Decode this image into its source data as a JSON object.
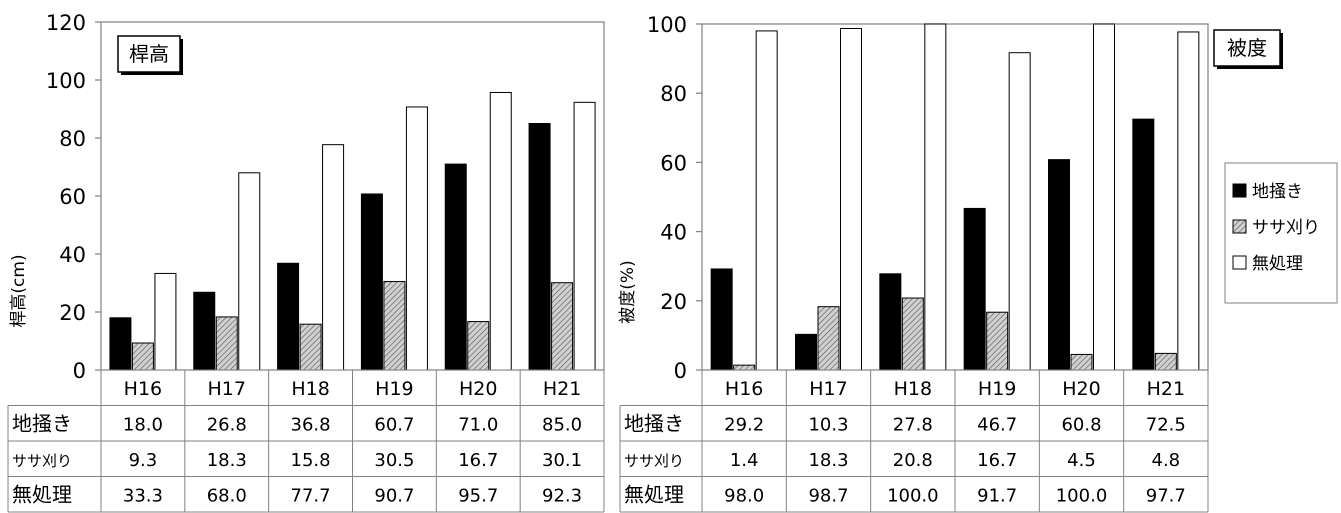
{
  "chart_data": [
    {
      "type": "bar",
      "title": "桿高",
      "ylabel": "桿高(cm)",
      "xlabel": "",
      "ylim": [
        0,
        120
      ],
      "yticks": [
        0,
        20,
        40,
        60,
        80,
        100,
        120
      ],
      "categories": [
        "H16",
        "H17",
        "H18",
        "H19",
        "H20",
        "H21"
      ],
      "series": [
        {
          "name": "地掻き",
          "values": [
            18.0,
            26.8,
            36.8,
            60.7,
            71.0,
            85.0
          ],
          "labels": [
            "18.0",
            "26.8",
            "36.8",
            "60.7",
            "71.0",
            "85.0"
          ]
        },
        {
          "name": "ササ刈り",
          "values": [
            9.3,
            18.3,
            15.8,
            30.5,
            16.7,
            30.1
          ],
          "labels": [
            "9.3",
            "18.3",
            "15.8",
            "30.5",
            "16.7",
            "30.1"
          ]
        },
        {
          "name": "無処理",
          "values": [
            33.3,
            68.0,
            77.7,
            90.7,
            95.7,
            92.3
          ],
          "labels": [
            "33.3",
            "68.0",
            "77.7",
            "90.7",
            "95.7",
            "92.3"
          ]
        }
      ],
      "grid": false,
      "data_table": true
    },
    {
      "type": "bar",
      "title": "被度",
      "ylabel": "被度(%)",
      "xlabel": "",
      "ylim": [
        0,
        100
      ],
      "yticks": [
        0,
        20,
        40,
        60,
        80,
        100
      ],
      "categories": [
        "H16",
        "H17",
        "H18",
        "H19",
        "H20",
        "H21"
      ],
      "series": [
        {
          "name": "地掻き",
          "values": [
            29.2,
            10.3,
            27.8,
            46.7,
            60.8,
            72.5
          ],
          "labels": [
            "29.2",
            "10.3",
            "27.8",
            "46.7",
            "60.8",
            "72.5"
          ]
        },
        {
          "name": "ササ刈り",
          "values": [
            1.4,
            18.3,
            20.8,
            16.7,
            4.5,
            4.8
          ],
          "labels": [
            "1.4",
            "18.3",
            "20.8",
            "16.7",
            "4.5",
            "4.8"
          ]
        },
        {
          "name": "無処理",
          "values": [
            98.0,
            98.7,
            100.0,
            91.7,
            100.0,
            97.7
          ],
          "labels": [
            "98.0",
            "98.7",
            "100.0",
            "91.7",
            "100.0",
            "97.7"
          ]
        }
      ],
      "grid": false,
      "data_table": true
    }
  ],
  "legend": {
    "placement": "right",
    "items": [
      {
        "name": "地掻き",
        "fill": "solid-black"
      },
      {
        "name": "ササ刈り",
        "fill": "gray-hatched"
      },
      {
        "name": "無処理",
        "fill": "white"
      }
    ]
  },
  "colors": {
    "series1": "#000000",
    "series2": "#bfbfbf",
    "series3": "#ffffff",
    "frame": "#7f7f7f"
  }
}
